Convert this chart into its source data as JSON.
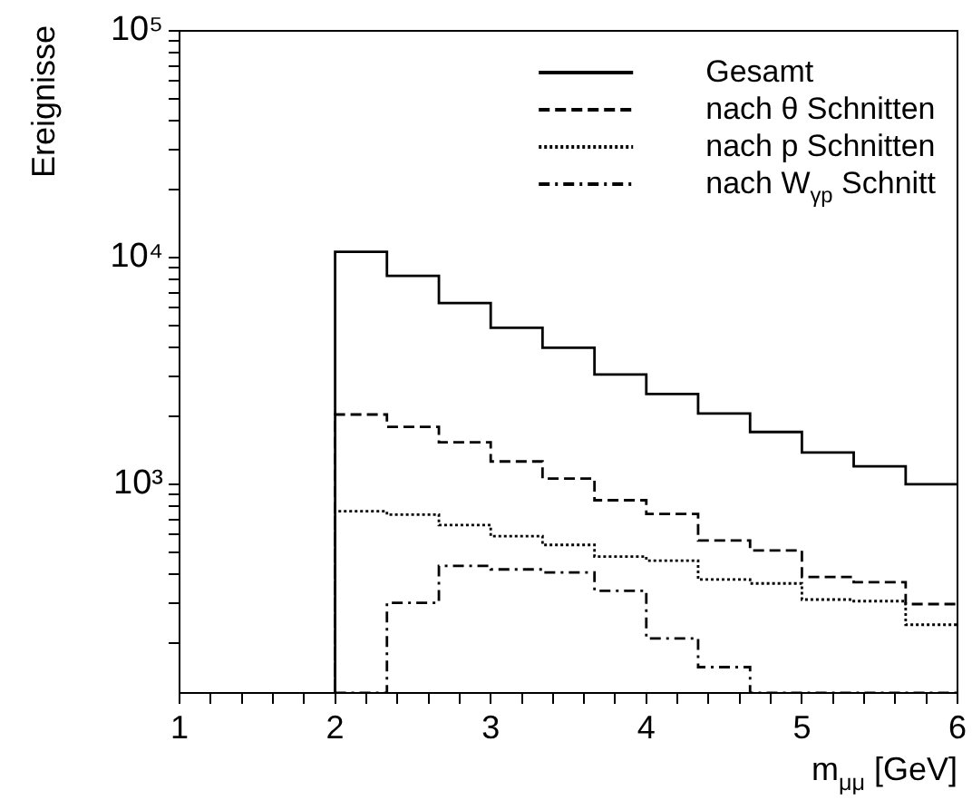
{
  "chart_data": {
    "type": "histogram",
    "xlabel": "m$_{μμ}$ [GeV]",
    "ylabel": "Ereignisse",
    "bins": [
      2,
      2.333,
      2.667,
      3,
      3.333,
      3.667,
      4,
      4.333,
      4.667,
      5,
      5.333,
      5.667,
      6
    ],
    "series": [
      {
        "name": "Gesamt",
        "color": "#000000",
        "line_style": "solid",
        "values": [
          10600,
          8300,
          6300,
          4900,
          4000,
          3050,
          2500,
          2050,
          1700,
          1380,
          1200,
          1000
        ]
      },
      {
        "name": "nach θ Schnitten",
        "color": "#010101",
        "line_style": "dashed",
        "values": [
          2030,
          1790,
          1530,
          1260,
          1060,
          850,
          740,
          565,
          510,
          390,
          370,
          296
        ]
      },
      {
        "name": "nach p Schnitten",
        "color": "#020202",
        "line_style": "dotted",
        "values": [
          760,
          735,
          660,
          590,
          540,
          480,
          460,
          380,
          365,
          310,
          305,
          240
        ]
      },
      {
        "name": "nach W$_{γp}$ Schnitt",
        "color": "#030303",
        "line_style": "dashdot",
        "values": [
          null,
          300,
          436,
          421,
          408,
          339,
          209,
          156,
          null,
          null,
          null,
          null
        ]
      }
    ],
    "xlim": [
      1,
      6
    ],
    "xticks": [
      1,
      {
        "value": 1.2,
        "label": null
      },
      {
        "value": 1.4,
        "label": null
      },
      {
        "value": 1.6,
        "label": null
      },
      {
        "value": 1.8,
        "label": null
      },
      2,
      {
        "value": 2.2,
        "label": null
      },
      {
        "value": 2.4,
        "label": null
      },
      {
        "value": 2.6,
        "label": null
      },
      {
        "value": 2.8,
        "label": null
      },
      3,
      {
        "value": 3.2,
        "label": null
      },
      {
        "value": 3.4,
        "label": null
      },
      {
        "value": 3.6,
        "label": null
      },
      {
        "value": 3.8,
        "label": null
      },
      4,
      {
        "value": 4.2,
        "label": null
      },
      {
        "value": 4.4,
        "label": null
      },
      {
        "value": 4.6,
        "label": null
      },
      {
        "value": 4.8,
        "label": null
      },
      5,
      {
        "value": 5.2,
        "label": null
      },
      {
        "value": 5.4,
        "label": null
      },
      {
        "value": 5.6,
        "label": null
      },
      {
        "value": 5.8,
        "label": null
      },
      6
    ],
    "ylim": [
      120,
      100000
    ],
    "yticks": [
      {
        "value": 200,
        "label": null
      },
      {
        "value": 300,
        "label": null
      },
      {
        "value": 400,
        "label": null
      },
      {
        "value": 500,
        "label": null
      },
      {
        "value": 600,
        "label": null
      },
      {
        "value": 700,
        "label": null
      },
      {
        "value": 800,
        "label": null
      },
      {
        "value": 900,
        "label": null
      },
      {
        "value": 1000,
        "label": "10³"
      },
      {
        "value": 2000,
        "label": null
      },
      {
        "value": 3000,
        "label": null
      },
      {
        "value": 4000,
        "label": null
      },
      {
        "value": 5000,
        "label": null
      },
      {
        "value": 6000,
        "label": null
      },
      {
        "value": 7000,
        "label": null
      },
      {
        "value": 8000,
        "label": null
      },
      {
        "value": 9000,
        "label": null
      },
      {
        "value": 10000,
        "label": "10⁴"
      },
      {
        "value": 20000,
        "label": null
      },
      {
        "value": 30000,
        "label": null
      },
      {
        "value": 40000,
        "label": null
      },
      {
        "value": 50000,
        "label": null
      },
      {
        "value": 60000,
        "label": null
      },
      {
        "value": 70000,
        "label": null
      },
      {
        "value": 80000,
        "label": null
      },
      {
        "value": 90000,
        "label": null
      },
      {
        "value": 100000,
        "label": "10⁵"
      }
    ],
    "log": "y",
    "grid": false,
    "legend": "top right"
  }
}
